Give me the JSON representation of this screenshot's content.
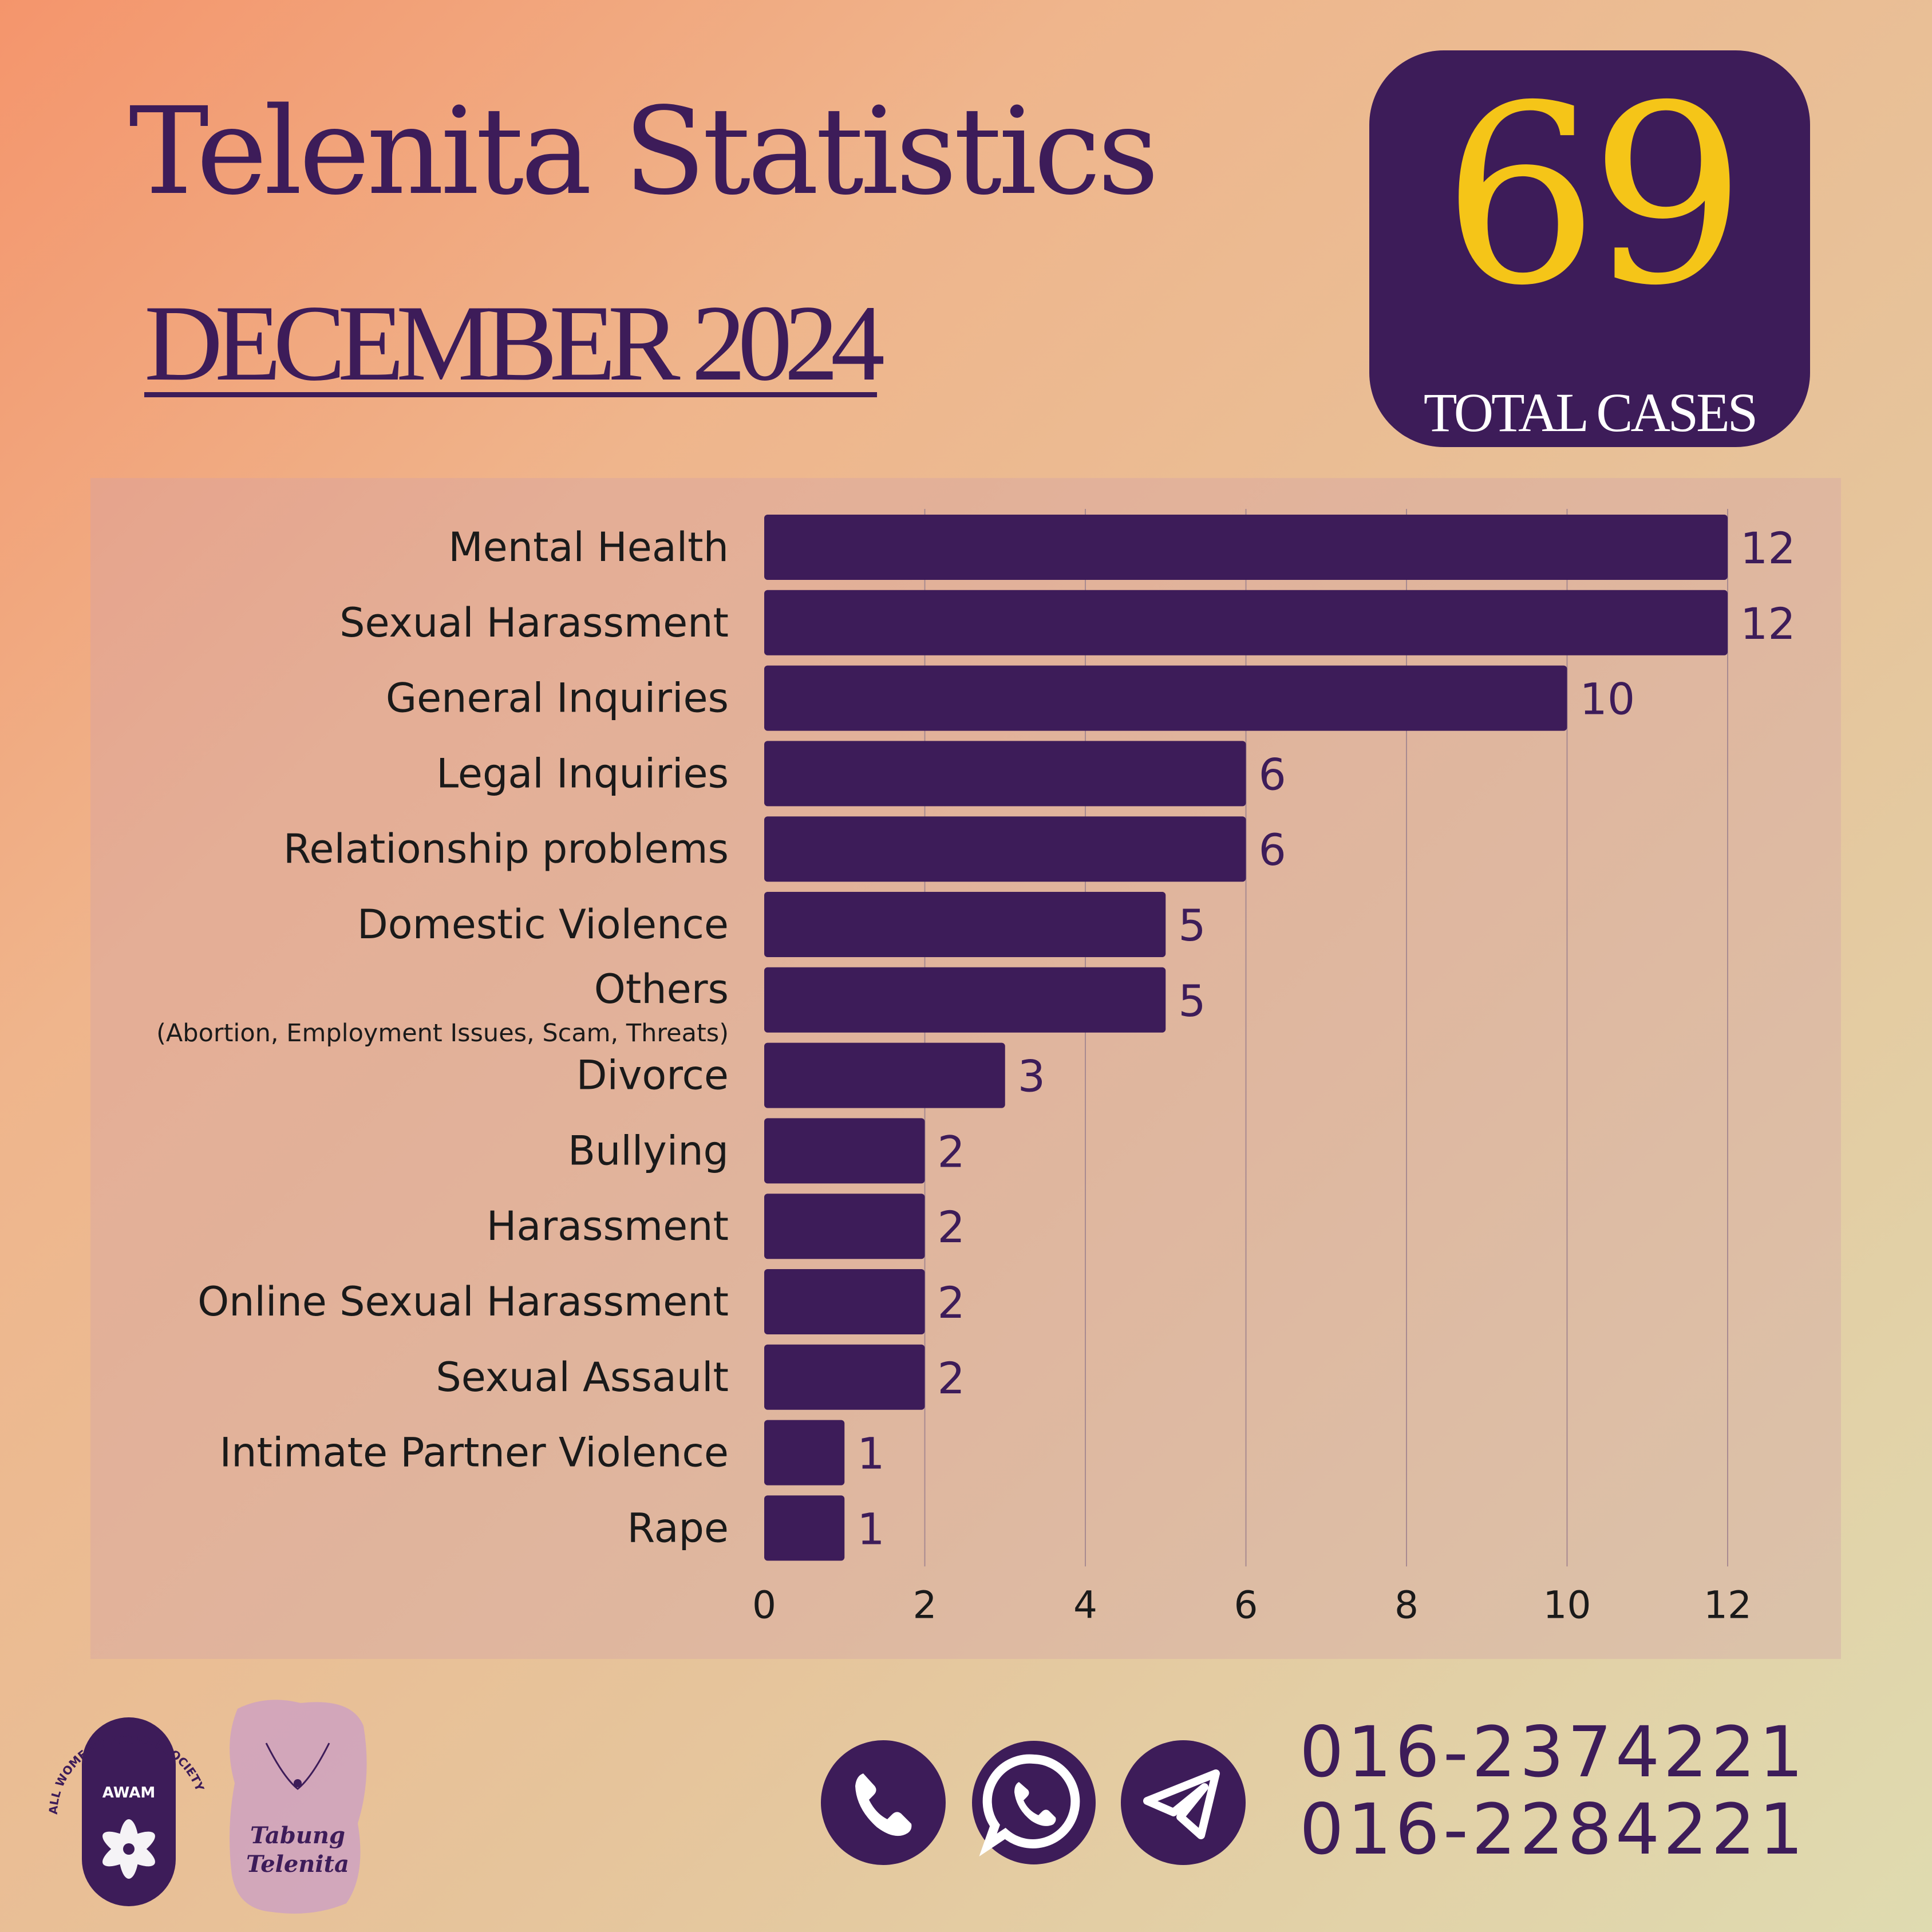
{
  "header": {
    "title": "Telenita Statistics",
    "subtitle": "DECEMBER 2024"
  },
  "badge": {
    "number": "69",
    "label": "TOTAL CASES",
    "number_color": "#f5c518",
    "bg_color": "#3d1c59"
  },
  "chart_data": {
    "type": "bar",
    "orientation": "horizontal",
    "title": "",
    "xlabel": "",
    "ylabel": "",
    "xlim": [
      0,
      12
    ],
    "x_ticks": [
      0,
      2,
      4,
      6,
      8,
      10,
      12
    ],
    "grid": "vertical",
    "bar_color": "#3d1c59",
    "categories": [
      "Mental Health",
      "Sexual Harassment",
      "General Inquiries",
      "Legal Inquiries",
      "Relationship problems",
      "Domestic Violence",
      "Others",
      "Divorce",
      "Bullying",
      "Harassment",
      "Online Sexual Harassment",
      "Sexual Assault",
      "Intimate Partner Violence",
      "Rape"
    ],
    "values": [
      12,
      12,
      10,
      6,
      6,
      5,
      5,
      3,
      2,
      2,
      2,
      2,
      1,
      1
    ],
    "annotations": [
      {
        "category": "Others",
        "text": "(Abortion, Employment Issues, Scam, Threats)"
      }
    ]
  },
  "footer": {
    "logos": [
      {
        "name": "awam-logo",
        "text": "AWAM",
        "ring_text": "ALL WOMEN'S ACTION SOCIETY"
      },
      {
        "name": "tabung-telenita-logo",
        "text": "Tabung Telenita"
      }
    ],
    "icons": [
      "phone-icon",
      "whatsapp-icon",
      "telegram-icon"
    ],
    "phone_numbers": [
      "016-2374221",
      "016-2284221"
    ]
  }
}
